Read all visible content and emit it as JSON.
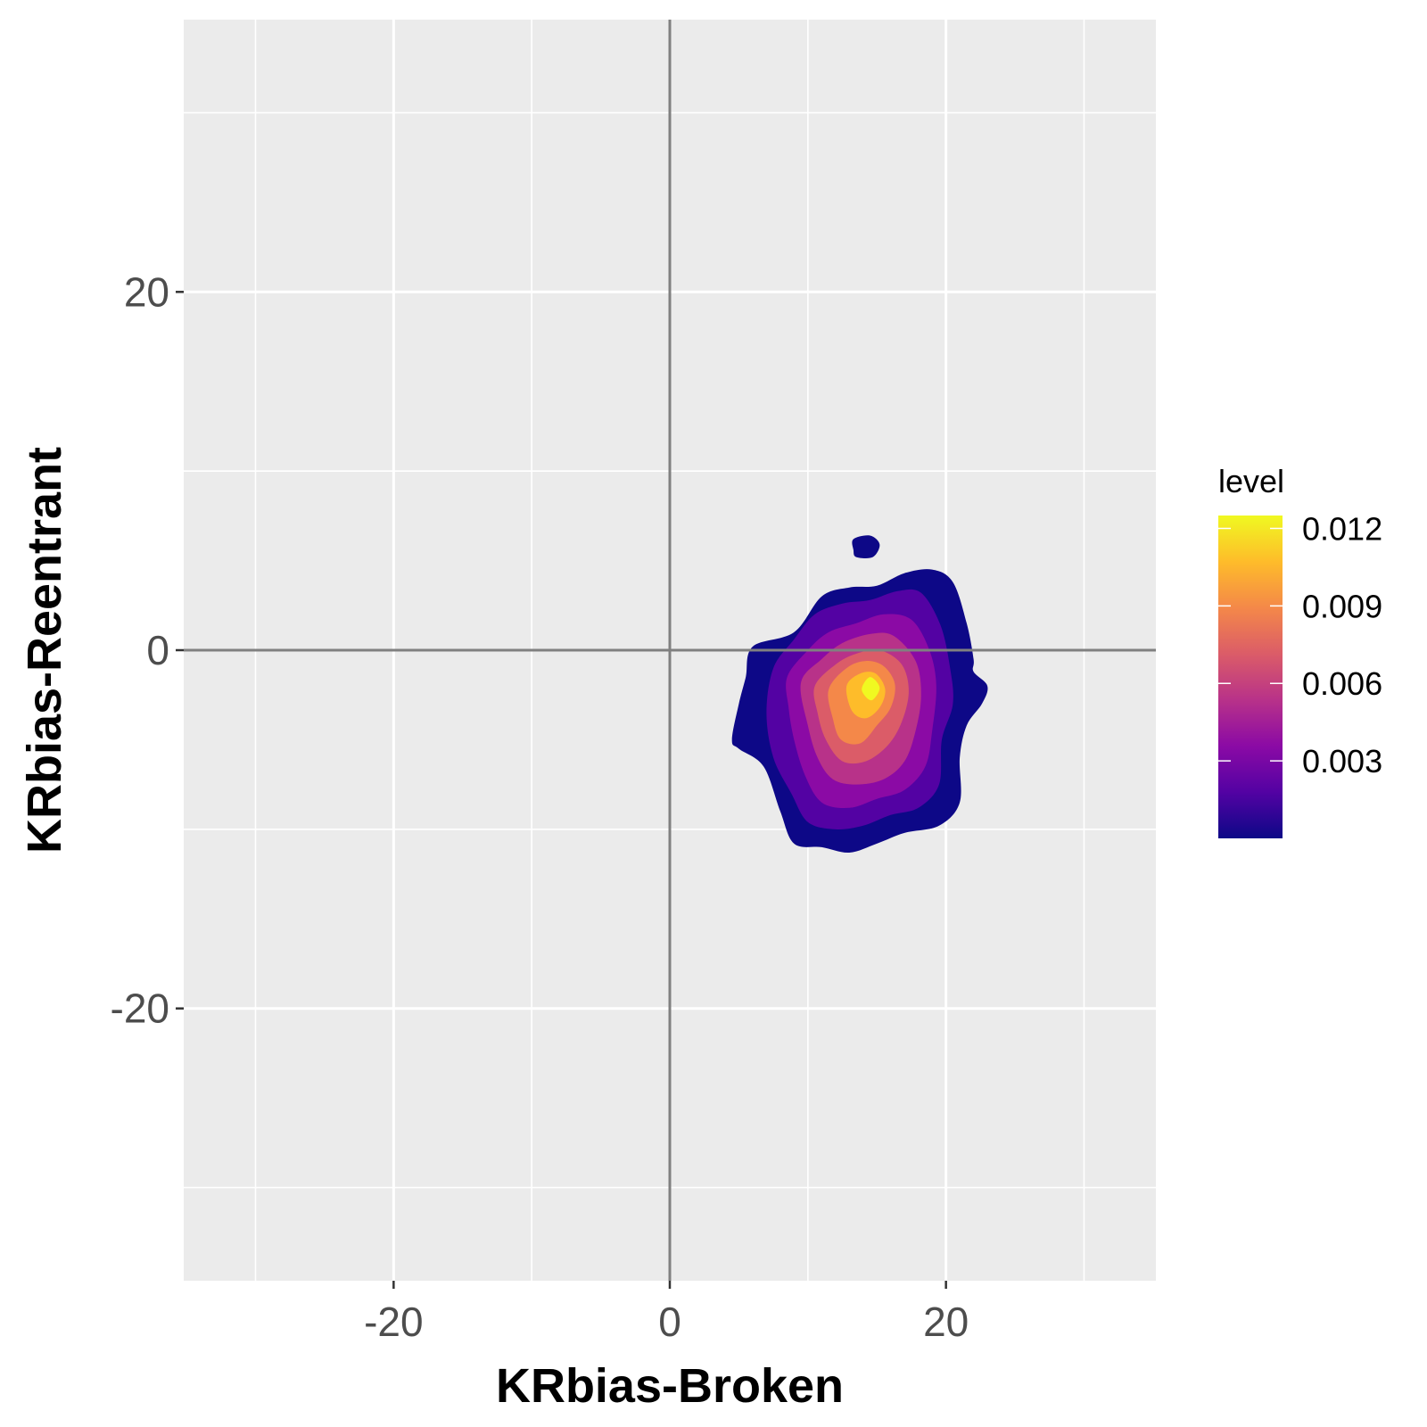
{
  "chart_data": {
    "type": "density2d_filled",
    "title": "",
    "xlabel": "KRbias-Broken",
    "ylabel": "KRbias-Reentrant",
    "xlim": [
      -35.2,
      35.2
    ],
    "ylim": [
      -35.2,
      35.2
    ],
    "x_ticks": [
      -20,
      0,
      20
    ],
    "y_ticks": [
      -20,
      0,
      20
    ],
    "reference_lines": {
      "x": 0,
      "y": 0
    },
    "grid": true,
    "legend": {
      "title": "level",
      "position": "right",
      "ticks": [
        0.003,
        0.006,
        0.009,
        0.012
      ],
      "tick_labels": [
        "0.003",
        "0.006",
        "0.009",
        "0.012"
      ],
      "range": [
        0.0,
        0.0125
      ],
      "palette": [
        "#0d0887",
        "#5302a3",
        "#8b0aa5",
        "#b83289",
        "#db5c68",
        "#f48849",
        "#febc2a",
        "#f0f921"
      ]
    },
    "density": {
      "peak": {
        "x": 14.5,
        "y": -2.0
      },
      "levels": [
        {
          "level": 0.0008,
          "color": "#0d0887",
          "outline": [
            [
              6,
              0.2
            ],
            [
              9,
              1
            ],
            [
              11,
              3
            ],
            [
              13,
              3.5
            ],
            [
              15,
              3.6
            ],
            [
              17,
              4.3
            ],
            [
              19,
              4.5
            ],
            [
              20.5,
              3.8
            ],
            [
              21.5,
              1.5
            ],
            [
              22,
              -0.5
            ],
            [
              22,
              -1.2
            ],
            [
              23,
              -2
            ],
            [
              22.6,
              -3
            ],
            [
              21.5,
              -4.2
            ],
            [
              21,
              -6
            ],
            [
              21,
              -8.5
            ],
            [
              19.5,
              -9.8
            ],
            [
              17,
              -10.2
            ],
            [
              15,
              -10.8
            ],
            [
              13,
              -11.3
            ],
            [
              11,
              -11
            ],
            [
              9,
              -10.8
            ],
            [
              8,
              -9
            ],
            [
              6.8,
              -6.5
            ],
            [
              5,
              -5.5
            ],
            [
              4.5,
              -5
            ],
            [
              5,
              -3
            ],
            [
              5.5,
              -1.5
            ]
          ]
        },
        {
          "level": 0.0016,
          "color": "#0d0887",
          "outline": [
            [
              13.3,
              6.2
            ],
            [
              14.5,
              6.4
            ],
            [
              15.2,
              5.9
            ],
            [
              14.7,
              5.2
            ],
            [
              13.5,
              5.2
            ],
            [
              13.3,
              5.6
            ]
          ]
        },
        {
          "level": 0.0025,
          "color": "#5302a3",
          "outline": [
            [
              7.5,
              -1
            ],
            [
              9,
              0.6
            ],
            [
              10.5,
              2
            ],
            [
              12.5,
              2.6
            ],
            [
              14.5,
              2.8
            ],
            [
              16.5,
              3.3
            ],
            [
              18.2,
              3.2
            ],
            [
              19.6,
              1.4
            ],
            [
              20.3,
              -1
            ],
            [
              20.5,
              -3
            ],
            [
              19.7,
              -5
            ],
            [
              19.5,
              -7.5
            ],
            [
              18,
              -8.8
            ],
            [
              16,
              -9.2
            ],
            [
              14,
              -9.8
            ],
            [
              12,
              -10
            ],
            [
              10,
              -9.6
            ],
            [
              8.8,
              -8
            ],
            [
              7.5,
              -6
            ],
            [
              7,
              -3.5
            ]
          ]
        },
        {
          "level": 0.004,
          "color": "#8b0aa5",
          "outline": [
            [
              8.5,
              -1.5
            ],
            [
              10,
              0
            ],
            [
              11.5,
              1
            ],
            [
              13.5,
              1.5
            ],
            [
              15.5,
              2
            ],
            [
              17.5,
              1.7
            ],
            [
              18.8,
              0
            ],
            [
              19.3,
              -2
            ],
            [
              19,
              -4.5
            ],
            [
              18.5,
              -6.5
            ],
            [
              17,
              -7.8
            ],
            [
              15,
              -8.3
            ],
            [
              13,
              -8.8
            ],
            [
              11,
              -8.5
            ],
            [
              9.8,
              -7
            ],
            [
              9,
              -5
            ],
            [
              8.6,
              -3.2
            ]
          ]
        },
        {
          "level": 0.0055,
          "color": "#b83289",
          "outline": [
            [
              9.5,
              -1.8
            ],
            [
              11,
              -0.5
            ],
            [
              12.5,
              0.4
            ],
            [
              14.5,
              0.9
            ],
            [
              16.2,
              0.8
            ],
            [
              17.8,
              -0.6
            ],
            [
              18.2,
              -2.5
            ],
            [
              17.8,
              -4.5
            ],
            [
              17,
              -6.2
            ],
            [
              15.5,
              -7.2
            ],
            [
              13.5,
              -7.5
            ],
            [
              11.8,
              -7.2
            ],
            [
              10.7,
              -6
            ],
            [
              10,
              -4.2
            ]
          ]
        },
        {
          "level": 0.007,
          "color": "#db5c68",
          "outline": [
            [
              10.5,
              -2
            ],
            [
              12,
              -0.8
            ],
            [
              13.5,
              -0.2
            ],
            [
              15.2,
              0
            ],
            [
              16.8,
              -0.8
            ],
            [
              17.3,
              -2.3
            ],
            [
              16.8,
              -4
            ],
            [
              15.8,
              -5.3
            ],
            [
              14.2,
              -6.2
            ],
            [
              12.5,
              -6.2
            ],
            [
              11.3,
              -5
            ],
            [
              10.7,
              -3.5
            ]
          ]
        },
        {
          "level": 0.0085,
          "color": "#f48849",
          "outline": [
            [
              11.5,
              -2.2
            ],
            [
              12.8,
              -1
            ],
            [
              14.2,
              -0.6
            ],
            [
              15.5,
              -0.9
            ],
            [
              16.3,
              -1.9
            ],
            [
              16,
              -3.2
            ],
            [
              15,
              -4.2
            ],
            [
              13.8,
              -5.2
            ],
            [
              12.4,
              -5
            ],
            [
              11.8,
              -3.8
            ]
          ]
        },
        {
          "level": 0.01,
          "color": "#febc2a",
          "outline": [
            [
              12.8,
              -2
            ],
            [
              13.8,
              -1.3
            ],
            [
              14.9,
              -1.3
            ],
            [
              15.6,
              -2.2
            ],
            [
              15.2,
              -3.2
            ],
            [
              14.2,
              -3.8
            ],
            [
              13.2,
              -3.4
            ]
          ]
        },
        {
          "level": 0.0115,
          "color": "#f0f921",
          "outline": [
            [
              13.9,
              -2.2
            ],
            [
              14.5,
              -1.5
            ],
            [
              15.2,
              -2.1
            ],
            [
              14.6,
              -2.8
            ]
          ]
        }
      ]
    }
  }
}
